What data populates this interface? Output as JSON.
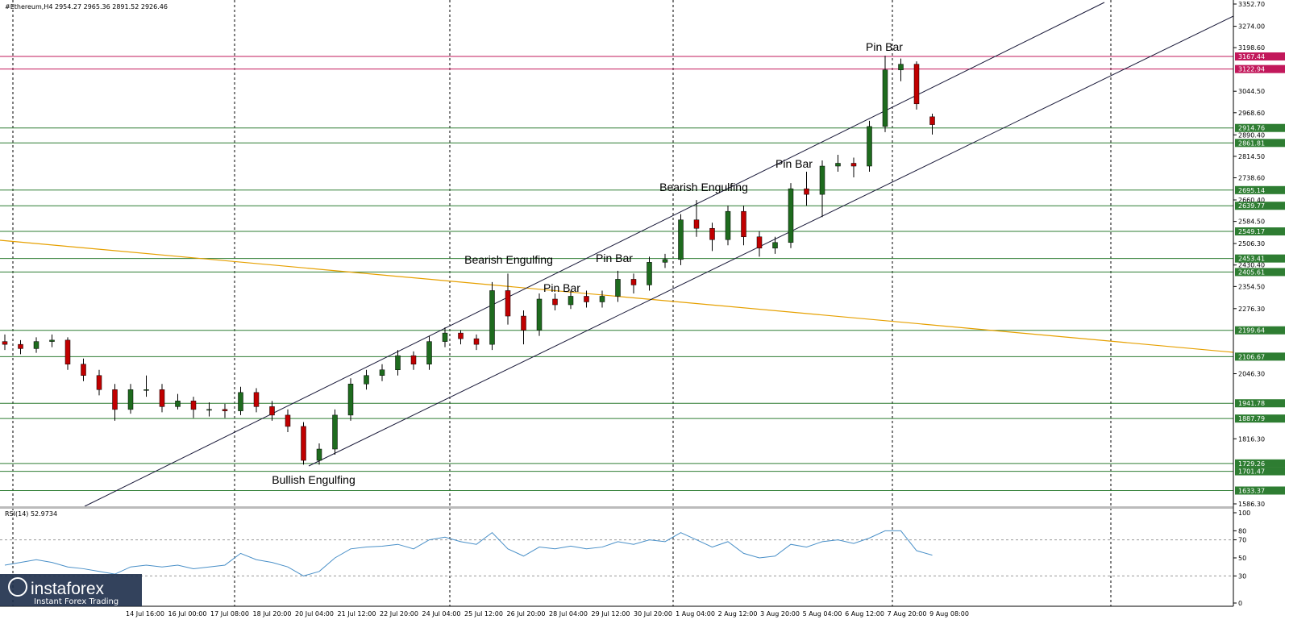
{
  "chart_data": [
    {
      "type": "candlestick",
      "title": "#Ethereum,H4  2954.27 2965.36 2891.52 2926.46",
      "open": [
        2160,
        2150,
        2135,
        2160,
        2165,
        2080,
        2040,
        1990,
        1920,
        1990,
        1990,
        1930,
        1950,
        1920,
        1920,
        1915,
        1980,
        1930,
        1900,
        1860,
        1740,
        1780,
        1900,
        2010,
        2040,
        2060,
        2110,
        2080,
        2160,
        2190,
        2170,
        2150,
        2340,
        2250,
        2200,
        2310,
        2290,
        2320,
        2300,
        2320,
        2380,
        2360,
        2440,
        2450,
        2590,
        2560,
        2520,
        2620,
        2530,
        2490,
        2510,
        2700,
        2680,
        2780,
        2790,
        2780,
        2920,
        3120,
        3140,
        2954.27
      ],
      "high": [
        2185,
        2165,
        2175,
        2185,
        2175,
        2100,
        2060,
        2010,
        2010,
        2040,
        2010,
        1975,
        1965,
        1945,
        1940,
        2000,
        1995,
        1950,
        1920,
        1875,
        1800,
        1920,
        2030,
        2060,
        2080,
        2130,
        2125,
        2180,
        2210,
        2200,
        2185,
        2370,
        2400,
        2270,
        2330,
        2330,
        2340,
        2340,
        2340,
        2410,
        2400,
        2460,
        2470,
        2610,
        2660,
        2580,
        2640,
        2640,
        2550,
        2530,
        2720,
        2760,
        2800,
        2820,
        2810,
        2940,
        3170,
        3160,
        3150,
        2965.36
      ],
      "low": [
        2130,
        2115,
        2120,
        2140,
        2060,
        2020,
        1970,
        1880,
        1905,
        1965,
        1910,
        1920,
        1890,
        1895,
        1890,
        1900,
        1910,
        1880,
        1840,
        1725,
        1725,
        1760,
        1880,
        1990,
        2020,
        2040,
        2060,
        2060,
        2140,
        2150,
        2130,
        2130,
        2220,
        2150,
        2180,
        2270,
        2275,
        2280,
        2280,
        2300,
        2330,
        2340,
        2420,
        2430,
        2530,
        2480,
        2500,
        2500,
        2460,
        2470,
        2490,
        2640,
        2600,
        2760,
        2740,
        2760,
        2900,
        3080,
        2980,
        2891.52
      ],
      "close": [
        2150,
        2135,
        2160,
        2165,
        2080,
        2040,
        1990,
        1920,
        1990,
        1990,
        1930,
        1950,
        1920,
        1920,
        1915,
        1980,
        1930,
        1900,
        1860,
        1740,
        1780,
        1900,
        2010,
        2040,
        2060,
        2110,
        2080,
        2160,
        2190,
        2170,
        2150,
        2340,
        2250,
        2200,
        2310,
        2290,
        2320,
        2300,
        2320,
        2380,
        2360,
        2440,
        2450,
        2590,
        2560,
        2520,
        2620,
        2530,
        2490,
        2510,
        2700,
        2680,
        2780,
        2790,
        2780,
        2920,
        3120,
        3140,
        3000,
        2926.46
      ],
      "up_color": "#1e6b1e",
      "down_color": "#c00000",
      "ylim": [
        1586.3,
        3352.7
      ],
      "yticks": [
        {
          "value": 3352.7,
          "label": "3352.70"
        },
        {
          "value": 3274,
          "label": "3274.00"
        },
        {
          "value": 3198.6,
          "label": "3198.60"
        },
        {
          "value": 3044.5,
          "label": "3044.50"
        },
        {
          "value": 2968.6,
          "label": "2968.60"
        },
        {
          "value": 2890.4,
          "label": "2890.40"
        },
        {
          "value": 2814.5,
          "label": "2814.50"
        },
        {
          "value": 2738.6,
          "label": "2738.60"
        },
        {
          "value": 2660.4,
          "label": "2660.40"
        },
        {
          "value": 2584.5,
          "label": "2584.50"
        },
        {
          "value": 2506.3,
          "label": "2506.30"
        },
        {
          "value": 2430.4,
          "label": "2430.40"
        },
        {
          "value": 2354.5,
          "label": "2354.50"
        },
        {
          "value": 2276.3,
          "label": "2276.30"
        },
        {
          "value": 2046.3,
          "label": "2046.30"
        },
        {
          "value": 1816.3,
          "label": "1816.30"
        },
        {
          "value": 1586.3,
          "label": "1586.30"
        }
      ],
      "levels": [
        {
          "value": 3167.44,
          "color": "#c2185b"
        },
        {
          "value": 3122.94,
          "color": "#c2185b"
        },
        {
          "value": 2914.76,
          "color": "#2e7d32"
        },
        {
          "value": 2861.81,
          "color": "#2e7d32"
        },
        {
          "value": 2695.14,
          "color": "#2e7d32"
        },
        {
          "value": 2639.77,
          "color": "#2e7d32"
        },
        {
          "value": 2549.17,
          "color": "#2e7d32"
        },
        {
          "value": 2453.41,
          "color": "#2e7d32"
        },
        {
          "value": 2405.61,
          "color": "#2e7d32"
        },
        {
          "value": 2199.64,
          "color": "#2e7d32"
        },
        {
          "value": 2106.67,
          "color": "#2e7d32"
        },
        {
          "value": 1941.78,
          "color": "#2e7d32"
        },
        {
          "value": 1887.79,
          "color": "#2e7d32"
        },
        {
          "value": 1729.26,
          "color": "#2e7d32"
        },
        {
          "value": 1701.47,
          "color": "#2e7d32"
        },
        {
          "value": 1633.37,
          "color": "#2e7d32"
        }
      ],
      "annotations": [
        "Pin Bar",
        "Pin Bar",
        "Bearish Engulfing",
        "Pin Bar",
        "Bearish Engulfing",
        "Pin Bar",
        "Bullish Engulfing"
      ],
      "x_labels": [
        "14 Jul 16:00",
        "16 Jul 00:00",
        "17 Jul 08:00",
        "18 Jul 20:00",
        "20 Jul 04:00",
        "21 Jul 12:00",
        "22 Jul 20:00",
        "24 Jul 04:00",
        "25 Jul 12:00",
        "26 Jul 20:00",
        "28 Jul 04:00",
        "29 Jul 12:00",
        "30 Jul 20:00",
        "1 Aug 04:00",
        "2 Aug 12:00",
        "3 Aug 20:00",
        "5 Aug 04:00",
        "6 Aug 12:00",
        "7 Aug 20:00",
        "9 Aug 08:00"
      ]
    },
    {
      "type": "line",
      "title": "RSI(14) 52.9734",
      "color": "#4a90c8",
      "values": [
        42,
        45,
        48,
        45,
        40,
        38,
        35,
        32,
        40,
        42,
        40,
        42,
        38,
        40,
        42,
        55,
        48,
        45,
        40,
        30,
        35,
        50,
        60,
        62,
        63,
        65,
        60,
        70,
        73,
        68,
        65,
        78,
        60,
        52,
        62,
        60,
        63,
        60,
        62,
        68,
        65,
        70,
        68,
        78,
        70,
        62,
        68,
        55,
        50,
        52,
        65,
        62,
        68,
        70,
        66,
        72,
        80,
        80,
        58,
        53
      ],
      "ylim": [
        0,
        100
      ],
      "yticks": [
        100,
        80,
        70,
        50,
        30,
        0
      ]
    }
  ],
  "logo": {
    "name": "instaforex",
    "tagline": "Instant Forex Trading"
  }
}
